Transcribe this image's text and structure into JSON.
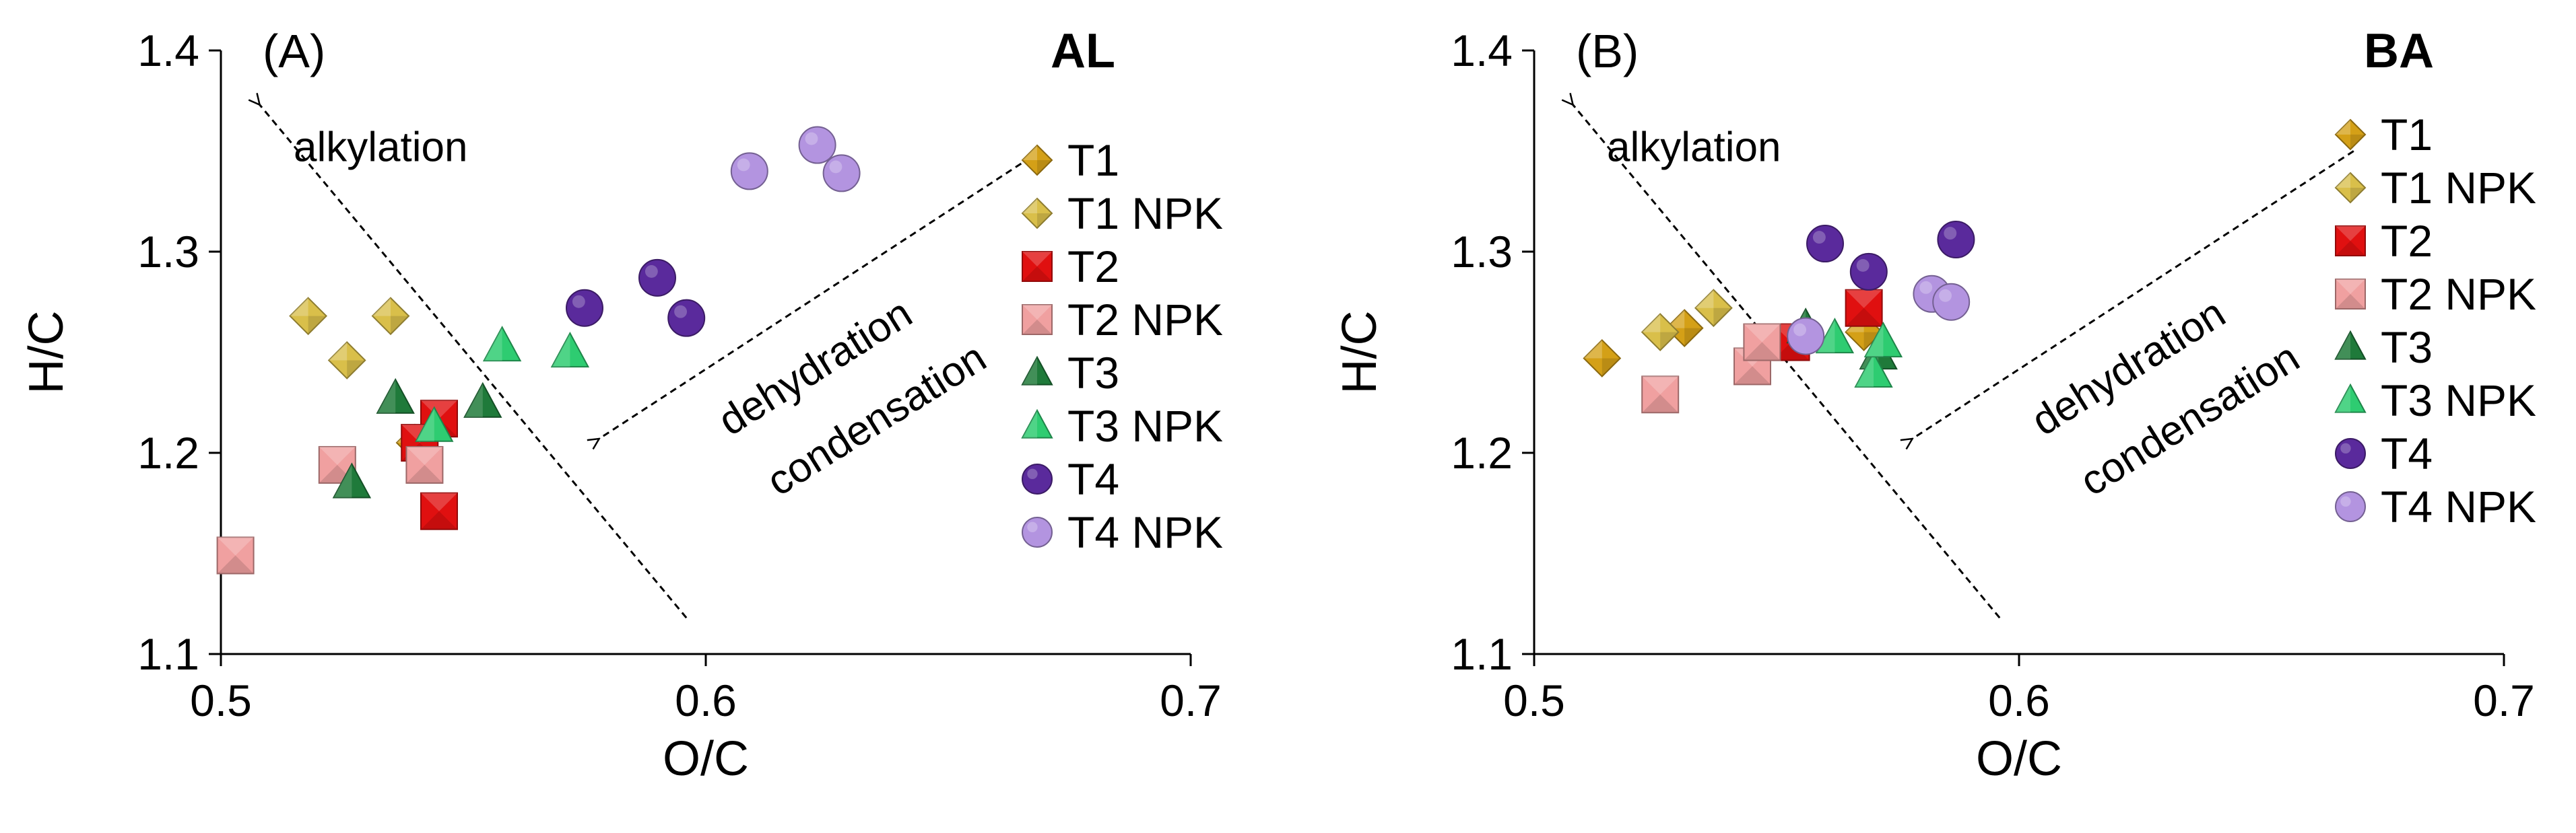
{
  "chart_data": [
    {
      "type": "scatter",
      "panel_label": "(A)",
      "site": "AL",
      "xlabel": "O/C",
      "ylabel": "H/C",
      "xlim": [
        0.5,
        0.7
      ],
      "ylim": [
        1.1,
        1.4
      ],
      "xticks": [
        "0.5",
        "0.6",
        "0.7"
      ],
      "yticks": [
        "1.1",
        "1.2",
        "1.3",
        "1.4"
      ],
      "grid": false,
      "legend_position": "right",
      "annotations": {
        "alkylation": "alkylation",
        "dehydration": "dehydration",
        "condensation": "condensation"
      },
      "series": [
        {
          "name": "T1",
          "marker": "diamond",
          "color": "#d4a017",
          "points": [
            [
              0.54,
              1.205
            ]
          ]
        },
        {
          "name": "T1 NPK",
          "marker": "diamond",
          "color": "#d9bf4a",
          "points": [
            [
              0.518,
              1.268
            ],
            [
              0.535,
              1.268
            ],
            [
              0.526,
              1.246
            ]
          ]
        },
        {
          "name": "T2",
          "marker": "square",
          "color": "#e01010",
          "points": [
            [
              0.545,
              1.217
            ],
            [
              0.541,
              1.205
            ],
            [
              0.545,
              1.171
            ]
          ]
        },
        {
          "name": "T2 NPK",
          "marker": "square",
          "color": "#f0a0a0",
          "points": [
            [
              0.503,
              1.149
            ],
            [
              0.524,
              1.194
            ],
            [
              0.542,
              1.194
            ]
          ]
        },
        {
          "name": "T3",
          "marker": "triangle",
          "color": "#1f7a3a",
          "points": [
            [
              0.536,
              1.227
            ],
            [
              0.527,
              1.185
            ],
            [
              0.554,
              1.225
            ]
          ]
        },
        {
          "name": "T3 NPK",
          "marker": "triangle",
          "color": "#2ecc71",
          "points": [
            [
              0.544,
              1.213
            ],
            [
              0.558,
              1.253
            ],
            [
              0.572,
              1.25
            ]
          ]
        },
        {
          "name": "T4",
          "marker": "circle",
          "color": "#5a2a9c",
          "points": [
            [
              0.575,
              1.272
            ],
            [
              0.59,
              1.287
            ],
            [
              0.596,
              1.267
            ]
          ]
        },
        {
          "name": "T4 NPK",
          "marker": "circle",
          "color": "#b394e0",
          "points": [
            [
              0.609,
              1.34
            ],
            [
              0.623,
              1.353
            ],
            [
              0.628,
              1.339
            ]
          ]
        }
      ]
    },
    {
      "type": "scatter",
      "panel_label": "(B)",
      "site": "BA",
      "xlabel": "O/C",
      "ylabel": "H/C",
      "xlim": [
        0.5,
        0.7
      ],
      "ylim": [
        1.1,
        1.4
      ],
      "xticks": [
        "0.5",
        "0.6",
        "0.7"
      ],
      "yticks": [
        "1.1",
        "1.2",
        "1.3",
        "1.4"
      ],
      "grid": false,
      "legend_position": "right",
      "annotations": {
        "alkylation": "alkylation",
        "dehydration": "dehydration",
        "condensation": "condensation"
      },
      "series": [
        {
          "name": "T1",
          "marker": "diamond",
          "color": "#d4a017",
          "points": [
            [
              0.514,
              1.247
            ],
            [
              0.531,
              1.262
            ],
            [
              0.568,
              1.26
            ]
          ]
        },
        {
          "name": "T1 NPK",
          "marker": "diamond",
          "color": "#d9bf4a",
          "points": [
            [
              0.526,
              1.26
            ],
            [
              0.537,
              1.272
            ]
          ]
        },
        {
          "name": "T2",
          "marker": "square",
          "color": "#e01010",
          "points": [
            [
              0.549,
              1.255
            ],
            [
              0.568,
              1.272
            ],
            [
              0.553,
              1.255
            ]
          ]
        },
        {
          "name": "T2 NPK",
          "marker": "square",
          "color": "#f0a0a0",
          "points": [
            [
              0.526,
              1.229
            ],
            [
              0.545,
              1.243
            ],
            [
              0.547,
              1.255
            ]
          ]
        },
        {
          "name": "T3",
          "marker": "triangle",
          "color": "#1f7a3a",
          "points": [
            [
              0.556,
              1.262
            ],
            [
              0.571,
              1.249
            ]
          ]
        },
        {
          "name": "T3 NPK",
          "marker": "triangle",
          "color": "#2ecc71",
          "points": [
            [
              0.562,
              1.257
            ],
            [
              0.57,
              1.24
            ],
            [
              0.572,
              1.255
            ]
          ]
        },
        {
          "name": "T4",
          "marker": "circle",
          "color": "#5a2a9c",
          "points": [
            [
              0.56,
              1.304
            ],
            [
              0.569,
              1.29
            ],
            [
              0.587,
              1.306
            ]
          ]
        },
        {
          "name": "T4 NPK",
          "marker": "circle",
          "color": "#b394e0",
          "points": [
            [
              0.556,
              1.258
            ],
            [
              0.582,
              1.279
            ],
            [
              0.586,
              1.275
            ]
          ]
        }
      ]
    }
  ]
}
